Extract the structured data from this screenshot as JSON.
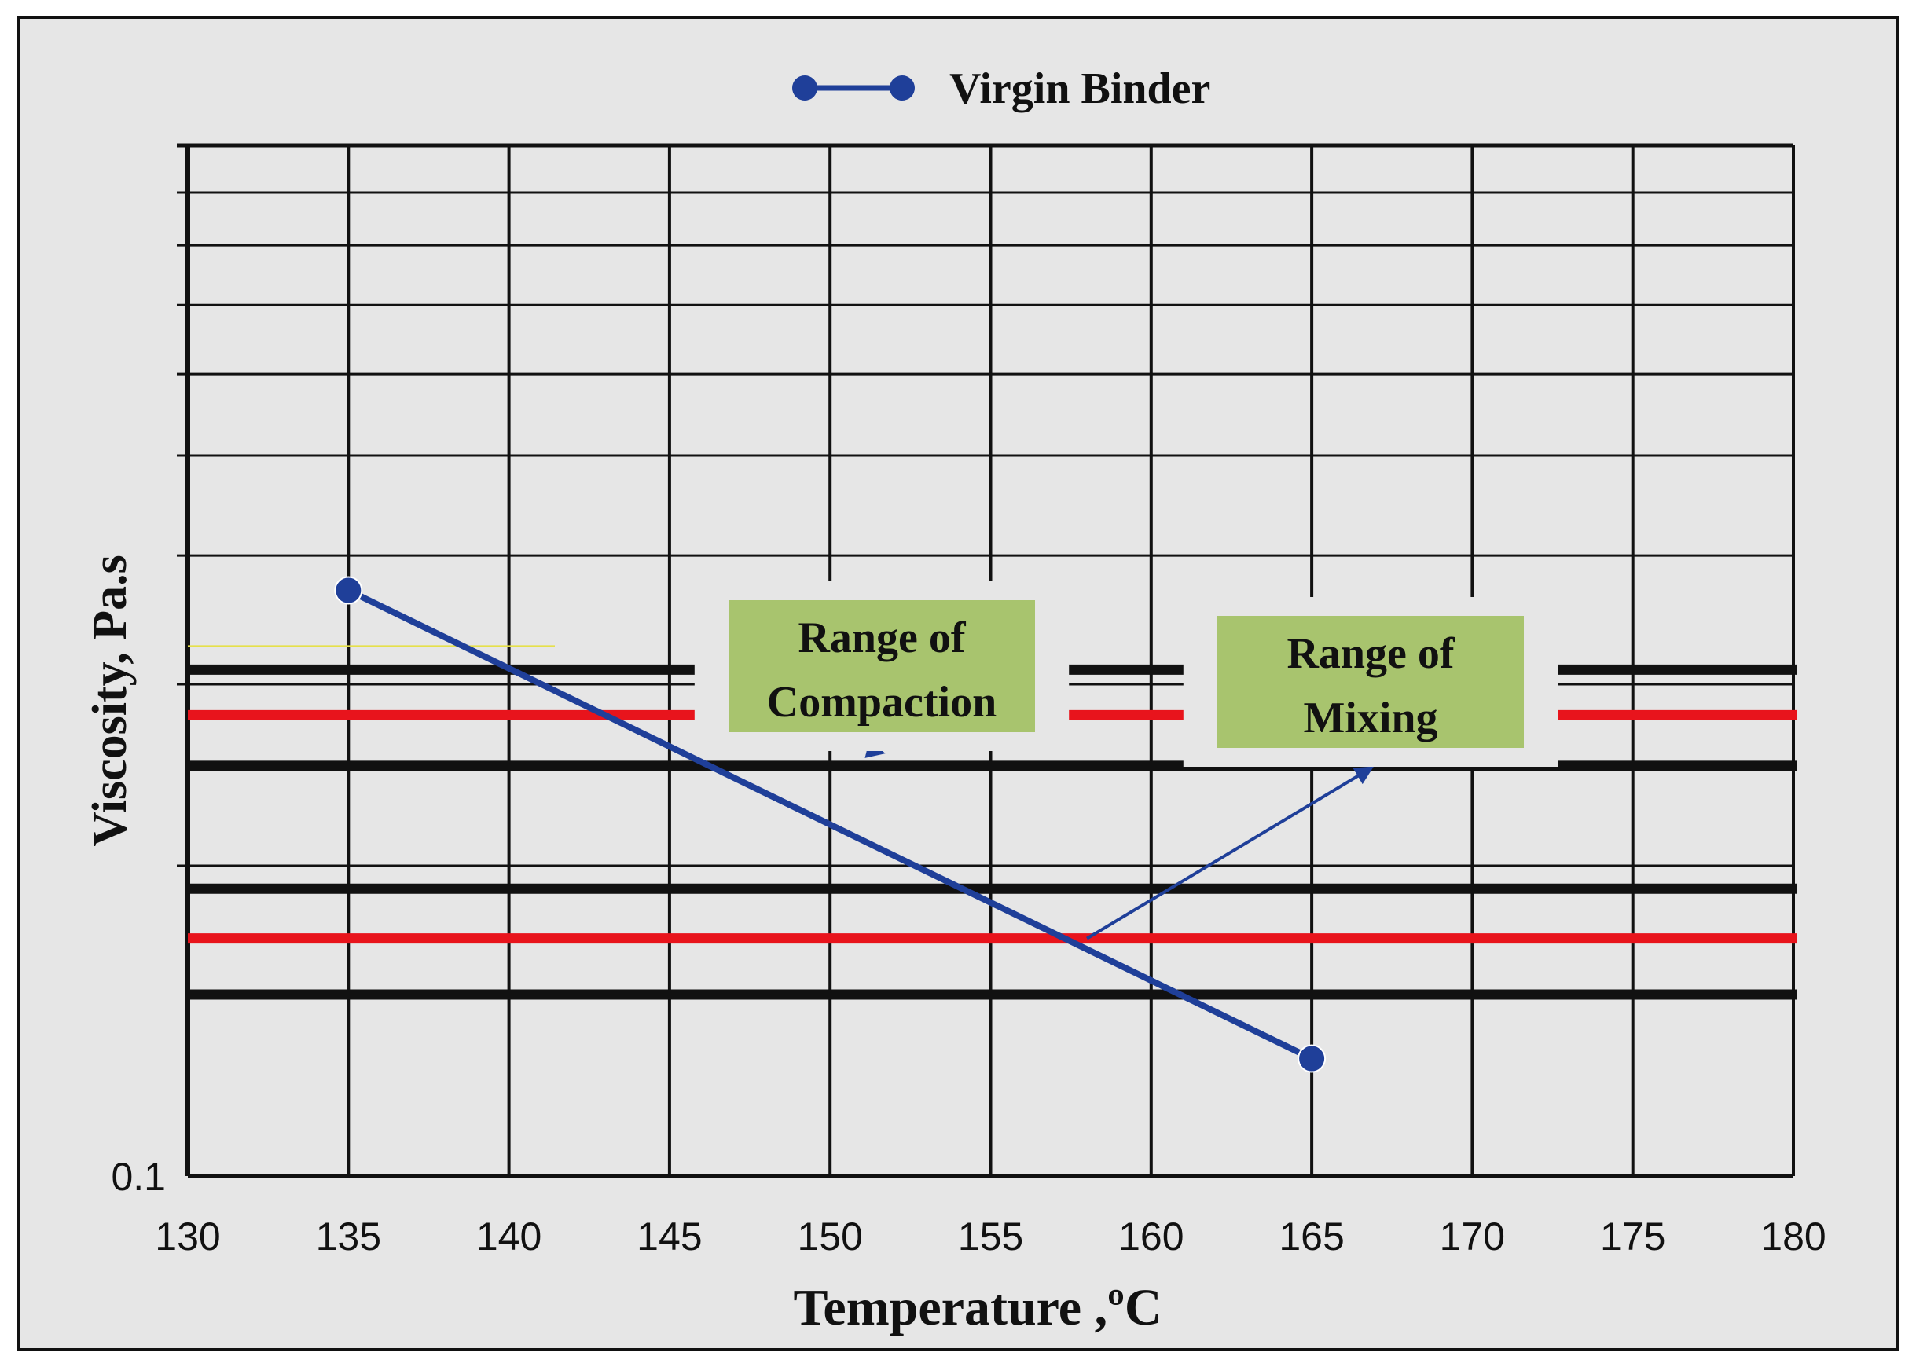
{
  "chart_data": {
    "type": "line",
    "title": "",
    "xlabel": "Temperature ,ºC",
    "ylabel": "Viscosity, Pa.s",
    "xlim": [
      130,
      180
    ],
    "x_ticks": [
      130,
      135,
      140,
      145,
      150,
      155,
      160,
      165,
      170,
      175,
      180
    ],
    "x_tick_labels": [
      "130",
      "135",
      "140",
      "145",
      "150",
      "155",
      "160",
      "165",
      "170",
      "175",
      "180"
    ],
    "yscale": "log",
    "ylim": [
      0.1,
      1.0
    ],
    "y_tick_labels": [
      "0.1"
    ],
    "legend": {
      "position": "top-center",
      "entries": [
        "Virgin Binder"
      ]
    },
    "series": [
      {
        "name": "Virgin Binder",
        "color": "#1f3f99",
        "x": [
          135,
          165
        ],
        "y": [
          0.37,
          0.13
        ]
      }
    ],
    "reference_lines": [
      {
        "name": "compaction-upper-bound",
        "y": 0.31,
        "color": "#111111"
      },
      {
        "name": "compaction-target",
        "y": 0.28,
        "color": "#e8141c"
      },
      {
        "name": "compaction-lower-bound",
        "y": 0.25,
        "color": "#111111"
      },
      {
        "name": "mixing-upper-bound",
        "y": 0.19,
        "color": "#111111"
      },
      {
        "name": "mixing-target",
        "y": 0.17,
        "color": "#e8141c"
      },
      {
        "name": "mixing-lower-bound",
        "y": 0.15,
        "color": "#111111"
      }
    ],
    "annotations": [
      {
        "name": "compaction",
        "line1": "Range of",
        "line2": "Compaction",
        "points_to_x": 147,
        "points_to_y": 0.28
      },
      {
        "name": "mixing",
        "line1": "Range of",
        "line2": "Mixing",
        "points_to_x": 158,
        "points_to_y": 0.17
      }
    ],
    "grid": true,
    "colors": {
      "box_fill": "#a8c46e",
      "background": "#e6e6e6"
    }
  }
}
